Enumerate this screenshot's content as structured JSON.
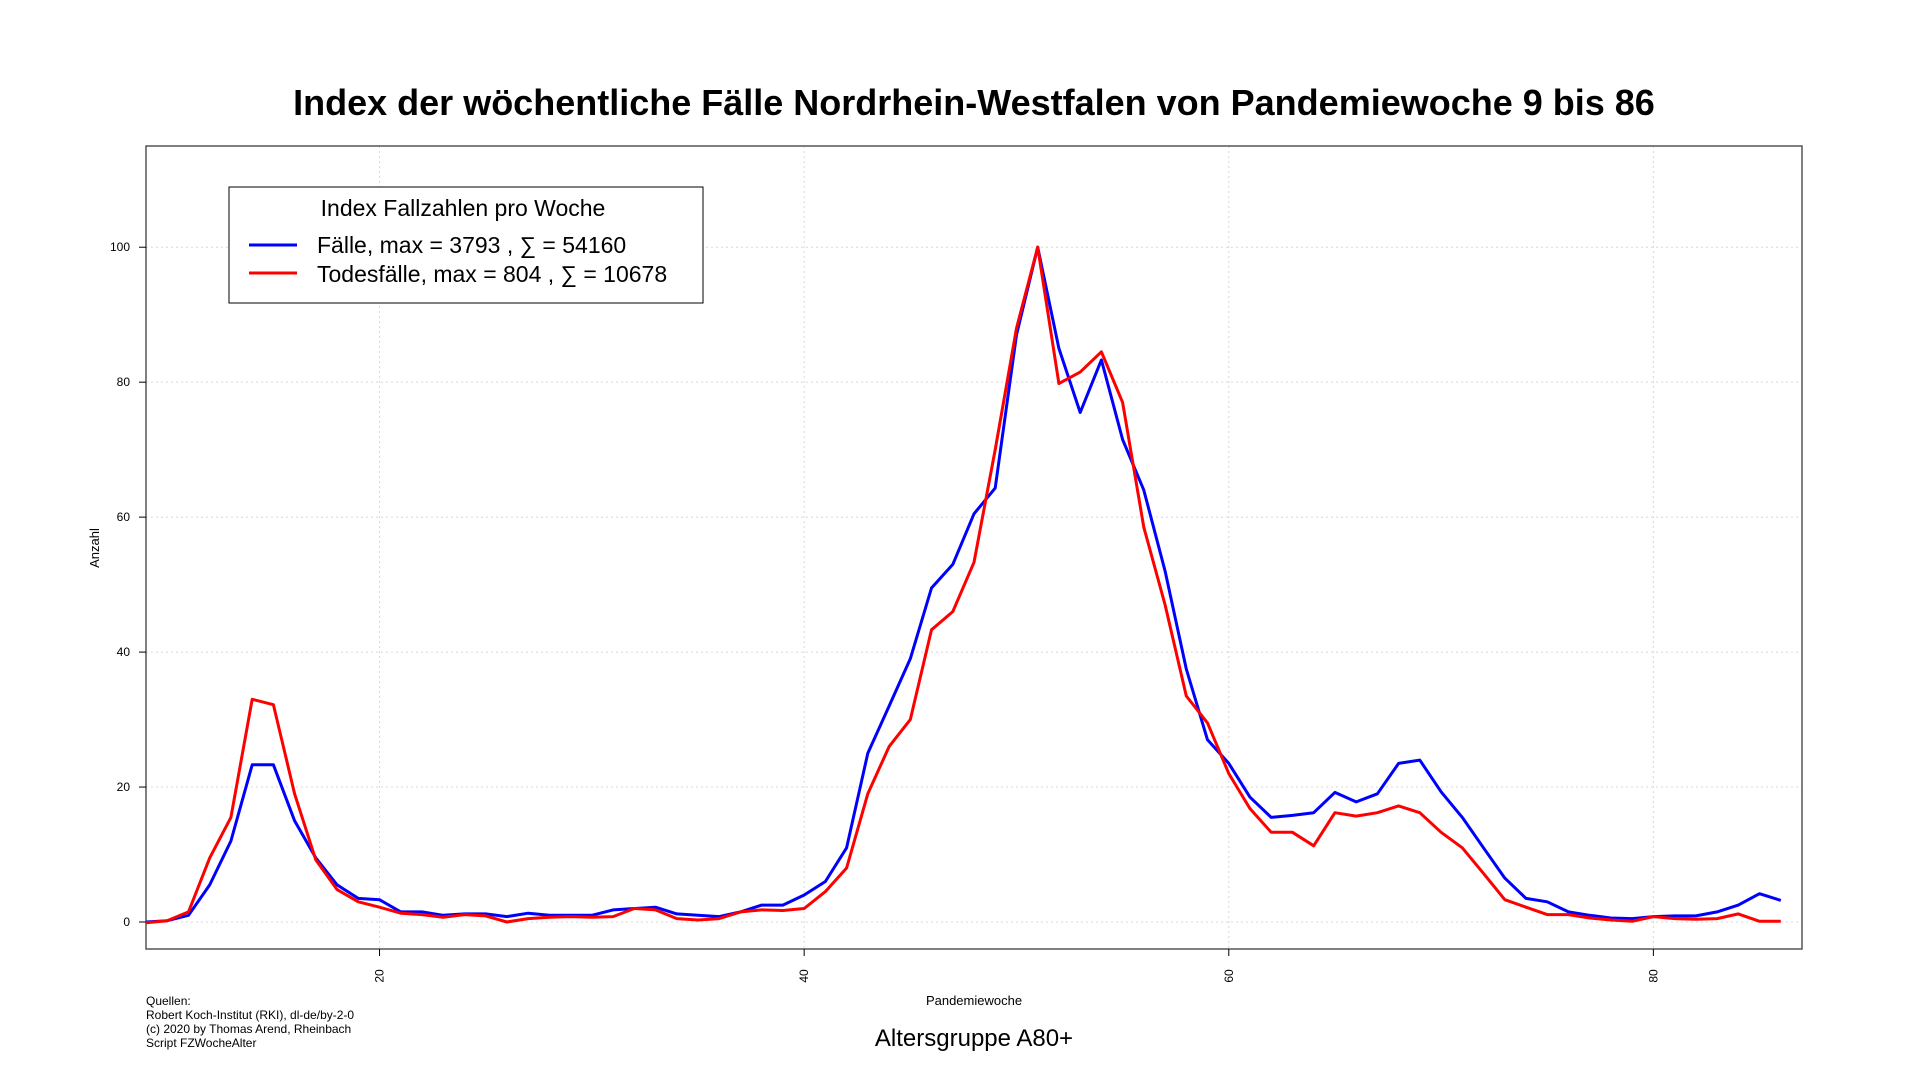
{
  "chart_data": {
    "type": "line",
    "title": "Index der wöchentliche Fälle Nordrhein-Westfalen von Pandemiewoche 9 bis 86",
    "xlabel": "Pandemiewoche",
    "ylabel": "Anzahl",
    "subtitle": "Altersgruppe A80+",
    "xlim": [
      9,
      87
    ],
    "ylim": [
      -4,
      115
    ],
    "xticks": [
      20,
      40,
      60,
      80
    ],
    "yticks": [
      0,
      20,
      40,
      60,
      80,
      100
    ],
    "grid": true,
    "legend": {
      "title": "Index Fallzahlen pro Woche",
      "placement": "top-left",
      "entries": [
        "Fälle, max = 3793 ,  ∑  = 54160",
        "Todesfälle, max = 804 ,  ∑  = 10678"
      ]
    },
    "colors": {
      "Fälle": "#0000ff",
      "Todesfälle": "#ff0000"
    },
    "x": [
      9,
      10,
      11,
      12,
      13,
      14,
      15,
      16,
      17,
      18,
      19,
      20,
      21,
      22,
      23,
      24,
      25,
      26,
      27,
      28,
      29,
      30,
      31,
      32,
      33,
      34,
      35,
      36,
      37,
      38,
      39,
      40,
      41,
      42,
      43,
      44,
      45,
      46,
      47,
      48,
      49,
      50,
      51,
      52,
      53,
      54,
      55,
      56,
      57,
      58,
      59,
      60,
      61,
      62,
      63,
      64,
      65,
      66,
      67,
      68,
      69,
      70,
      71,
      72,
      73,
      74,
      75,
      76,
      77,
      78,
      79,
      80,
      81,
      82,
      83,
      84,
      85,
      86
    ],
    "series": [
      {
        "name": "Fälle",
        "values": [
          0,
          0.2,
          1,
          5.5,
          12,
          23.3,
          23.3,
          15,
          9.5,
          5.5,
          3.5,
          3.3,
          1.5,
          1.5,
          1,
          1.2,
          1.2,
          0.8,
          1.3,
          1,
          1,
          1,
          1.8,
          2,
          2.2,
          1.2,
          1,
          0.8,
          1.5,
          2.5,
          2.5,
          4,
          6,
          11,
          25,
          32,
          39,
          49.5,
          53,
          60.5,
          64.3,
          87,
          100,
          85,
          75.5,
          83.3,
          71.5,
          64,
          52,
          37.5,
          27,
          23.5,
          18.5,
          15.5,
          15.8,
          16.2,
          19.2,
          17.8,
          19,
          23.5,
          24,
          19.3,
          15.5,
          11,
          6.5,
          3.5,
          3,
          1.5,
          1,
          0.6,
          0.5,
          0.8,
          0.9,
          0.9,
          1.5,
          2.5,
          4.2,
          3.2
        ]
      },
      {
        "name": "Todesfälle",
        "values": [
          -0.1,
          0.2,
          1.5,
          9.5,
          15.5,
          33,
          32.2,
          19,
          9.2,
          4.8,
          3,
          2.2,
          1.3,
          1.1,
          0.7,
          1.1,
          0.9,
          0,
          0.5,
          0.7,
          0.8,
          0.7,
          0.8,
          2,
          1.8,
          0.5,
          0.3,
          0.5,
          1.5,
          1.8,
          1.7,
          2,
          4.5,
          8,
          19,
          26,
          30,
          43.3,
          46,
          53.3,
          70,
          88,
          100,
          79.8,
          81.5,
          84.5,
          77,
          58.5,
          47,
          33.5,
          29.5,
          22,
          16.8,
          13.3,
          13.3,
          11.3,
          16.2,
          15.7,
          16.2,
          17.2,
          16.2,
          13.3,
          11,
          7.2,
          3.3,
          2.2,
          1.1,
          1.1,
          0.6,
          0.3,
          0.1,
          0.8,
          0.5,
          0.4,
          0.5,
          1.2,
          0.1,
          0.1
        ]
      }
    ]
  },
  "sources": [
    "Quellen:",
    "Robert Koch-Institut (RKI), dl-de/by-2-0",
    "(c) 2020 by Thomas Arend, Rheinbach",
    "Script FZWocheAlter"
  ]
}
